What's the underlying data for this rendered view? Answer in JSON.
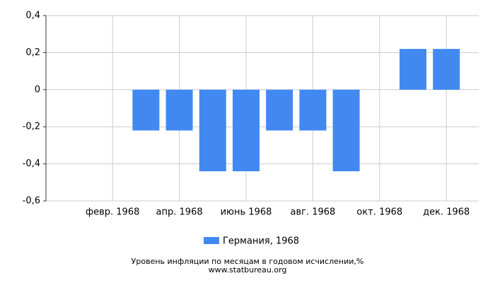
{
  "chart_data": {
    "type": "bar",
    "title": "Уровень инфляции по месяцам в годовом исчислении,%",
    "subtitle": "www.statbureau.org",
    "categories": [
      null,
      "февр. 1968",
      null,
      "апр. 1968",
      null,
      "июнь 1968",
      null,
      "авг. 1968",
      null,
      "окт. 1968",
      null,
      "дек. 1968"
    ],
    "series": [
      {
        "name": "Германия, 1968",
        "color": "#4189f0",
        "values": [
          null,
          null,
          -0.22,
          -0.22,
          -0.44,
          -0.44,
          -0.22,
          -0.22,
          -0.44,
          null,
          0.22,
          0.22
        ]
      }
    ],
    "ylim": [
      -0.6,
      0.4
    ],
    "yticks": [
      {
        "value": -0.6,
        "label": "-0,6"
      },
      {
        "value": -0.4,
        "label": "-0,4"
      },
      {
        "value": -0.2,
        "label": "-0,2"
      },
      0,
      {
        "value": 0.2,
        "label": "0,2"
      },
      {
        "value": 0.4,
        "label": "0,4"
      }
    ],
    "grid": true
  }
}
